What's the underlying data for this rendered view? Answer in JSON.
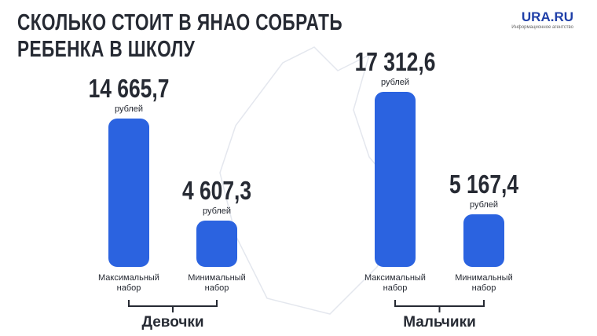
{
  "header": {
    "title": "СКОЛЬКО СТОИТ В ЯНАО СОБРАТЬ РЕБЕНКА В ШКОЛУ",
    "logo": "URA.RU",
    "logo_subtitle": "Информационное агентство"
  },
  "chart_data": {
    "type": "bar",
    "unit": "рублей",
    "color": "#2b63e0",
    "groups": [
      {
        "name": "Девочки",
        "categories": [
          "Максимальный набор",
          "Минимальный набор"
        ],
        "values": [
          14665.7,
          4607.3
        ],
        "value_labels": [
          "14 665,7",
          "4 607,3"
        ]
      },
      {
        "name": "Мальчики",
        "categories": [
          "Максимальный набор",
          "Минимальный набор"
        ],
        "values": [
          17312.6,
          5167.4
        ],
        "value_labels": [
          "17 312,6",
          "5 167,4"
        ]
      }
    ]
  }
}
